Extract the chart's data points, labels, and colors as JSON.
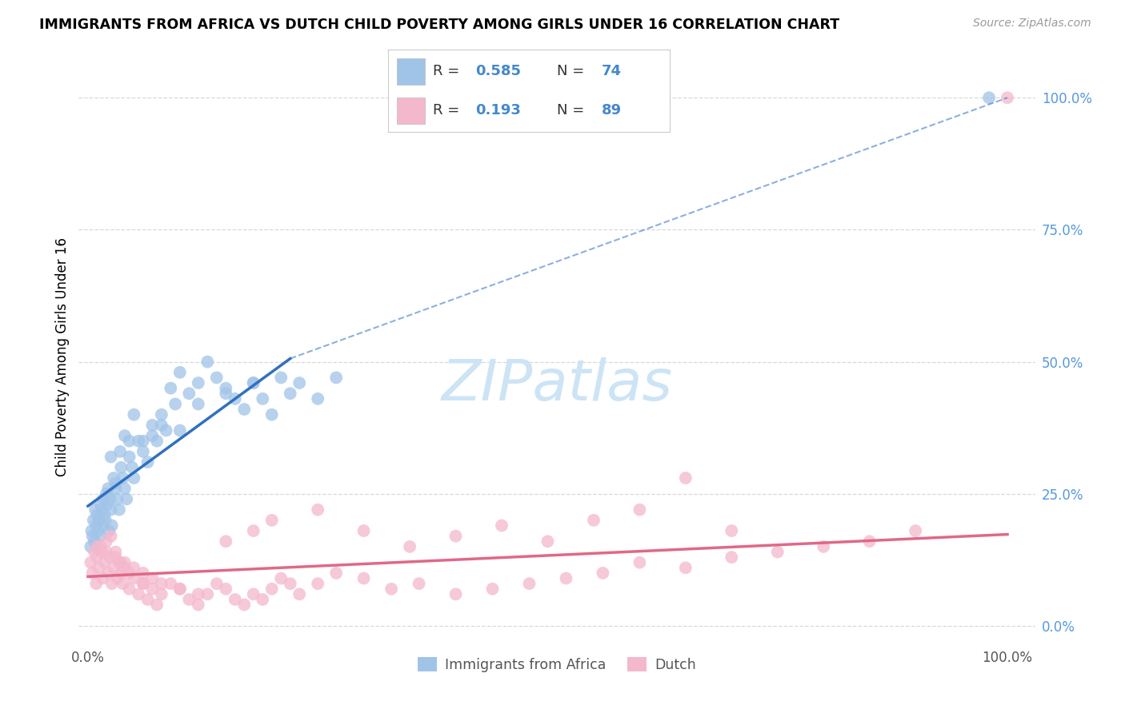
{
  "title": "IMMIGRANTS FROM AFRICA VS DUTCH CHILD POVERTY AMONG GIRLS UNDER 16 CORRELATION CHART",
  "source": "Source: ZipAtlas.com",
  "ylabel": "Child Poverty Among Girls Under 16",
  "legend_label1": "Immigrants from Africa",
  "legend_label2": "Dutch",
  "R1": 0.585,
  "N1": 74,
  "R2": 0.193,
  "N2": 89,
  "color_blue": "#a0c4e8",
  "color_pink": "#f4b8cc",
  "color_blue_line": "#3070c0",
  "color_pink_line": "#e06888",
  "color_blue_text": "#4488cc",
  "color_pink_text": "#cc6688",
  "color_right_axis": "#5599dd",
  "watermark_color": "#cce4f5",
  "grid_color": "#d8d8d8",
  "xlim": [
    0,
    100
  ],
  "ylim": [
    0,
    100
  ],
  "blue_x": [
    0.3,
    0.4,
    0.5,
    0.6,
    0.7,
    0.8,
    0.9,
    1.0,
    1.1,
    1.2,
    1.3,
    1.4,
    1.5,
    1.6,
    1.7,
    1.8,
    1.9,
    2.0,
    2.1,
    2.2,
    2.3,
    2.4,
    2.5,
    2.6,
    2.8,
    3.0,
    3.2,
    3.4,
    3.6,
    3.8,
    4.0,
    4.2,
    4.5,
    4.8,
    5.0,
    5.5,
    6.0,
    6.5,
    7.0,
    7.5,
    8.0,
    8.5,
    9.0,
    9.5,
    10.0,
    11.0,
    12.0,
    13.0,
    14.0,
    15.0,
    16.0,
    17.0,
    18.0,
    19.0,
    20.0,
    21.0,
    22.0,
    23.0,
    25.0,
    27.0,
    3.0,
    4.0,
    5.0,
    6.0,
    7.0,
    8.0,
    10.0,
    12.0,
    15.0,
    18.0,
    2.5,
    3.5,
    4.5,
    98.0
  ],
  "blue_y": [
    15,
    18,
    17,
    20,
    16,
    22,
    19,
    21,
    18,
    20,
    17,
    23,
    22,
    19,
    24,
    21,
    20,
    25,
    23,
    26,
    18,
    24,
    22,
    19,
    28,
    26,
    24,
    22,
    30,
    28,
    26,
    24,
    32,
    30,
    28,
    35,
    33,
    31,
    38,
    35,
    40,
    37,
    45,
    42,
    48,
    44,
    46,
    50,
    47,
    44,
    43,
    41,
    46,
    43,
    40,
    47,
    44,
    46,
    43,
    47,
    27,
    36,
    40,
    35,
    36,
    38,
    37,
    42,
    45,
    46,
    32,
    33,
    35,
    100
  ],
  "pink_x": [
    0.3,
    0.5,
    0.7,
    0.9,
    1.0,
    1.2,
    1.4,
    1.6,
    1.8,
    2.0,
    2.2,
    2.4,
    2.6,
    2.8,
    3.0,
    3.2,
    3.4,
    3.6,
    3.8,
    4.0,
    4.5,
    5.0,
    5.5,
    6.0,
    6.5,
    7.0,
    7.5,
    8.0,
    9.0,
    10.0,
    11.0,
    12.0,
    13.0,
    14.0,
    15.0,
    16.0,
    17.0,
    18.0,
    19.0,
    20.0,
    21.0,
    22.0,
    23.0,
    25.0,
    27.0,
    30.0,
    33.0,
    36.0,
    40.0,
    44.0,
    48.0,
    52.0,
    56.0,
    60.0,
    65.0,
    70.0,
    75.0,
    80.0,
    85.0,
    90.0,
    1.0,
    2.0,
    3.0,
    4.0,
    5.0,
    6.0,
    7.0,
    8.0,
    10.0,
    12.0,
    15.0,
    18.0,
    20.0,
    25.0,
    30.0,
    35.0,
    40.0,
    45.0,
    50.0,
    55.0,
    60.0,
    65.0,
    70.0,
    1.5,
    2.5,
    3.5,
    4.5,
    6.0,
    100.0
  ],
  "pink_y": [
    12,
    10,
    14,
    8,
    13,
    11,
    15,
    9,
    12,
    16,
    10,
    13,
    8,
    11,
    14,
    9,
    12,
    10,
    8,
    11,
    7,
    9,
    6,
    8,
    5,
    7,
    4,
    6,
    8,
    7,
    5,
    4,
    6,
    8,
    7,
    5,
    4,
    6,
    5,
    7,
    9,
    8,
    6,
    8,
    10,
    9,
    7,
    8,
    6,
    7,
    8,
    9,
    10,
    12,
    11,
    13,
    14,
    15,
    16,
    18,
    15,
    14,
    13,
    12,
    11,
    10,
    9,
    8,
    7,
    6,
    16,
    18,
    20,
    22,
    18,
    15,
    17,
    19,
    16,
    20,
    22,
    28,
    18,
    14,
    17,
    12,
    10,
    8,
    100
  ]
}
